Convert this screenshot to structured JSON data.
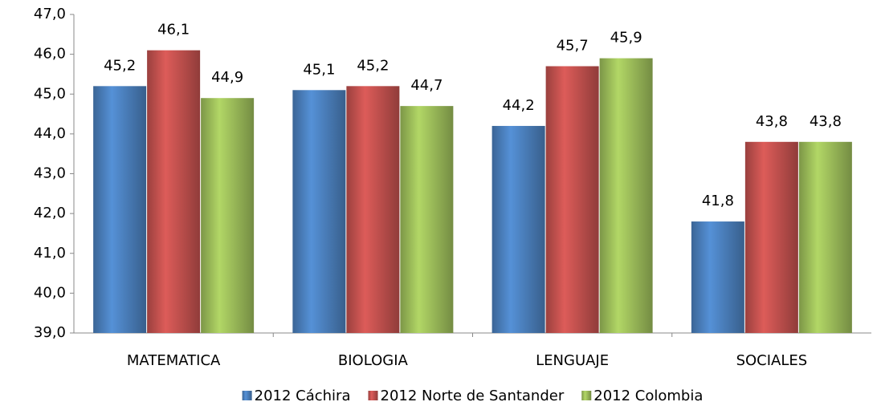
{
  "chart_data": {
    "type": "bar",
    "categories": [
      "MATEMATICA",
      "BIOLOGIA",
      "LENGUAJE",
      "SOCIALES"
    ],
    "series": [
      {
        "name": "2012 Cáchira",
        "color": "#4a7ebb",
        "values": [
          45.2,
          45.1,
          44.2,
          41.8
        ],
        "value_labels": [
          "45,2",
          "45,1",
          "44,2",
          "41,8"
        ]
      },
      {
        "name": "2012 Norte de Santander",
        "color": "#c0504d",
        "values": [
          46.1,
          45.2,
          45.7,
          43.8
        ],
        "value_labels": [
          "46,1",
          "45,2",
          "45,7",
          "43,8"
        ]
      },
      {
        "name": "2012 Colombia",
        "color": "#9bbb59",
        "values": [
          44.9,
          44.7,
          45.9,
          43.8
        ],
        "value_labels": [
          "44,9",
          "44,7",
          "45,9",
          "43,8"
        ]
      }
    ],
    "ylim": [
      39,
      47
    ],
    "yticks": [
      {
        "value": 39,
        "label": "39,0"
      },
      {
        "value": 40,
        "label": "40,0"
      },
      {
        "value": 41,
        "label": "41,0"
      },
      {
        "value": 42,
        "label": "42,0"
      },
      {
        "value": 43,
        "label": "43,0"
      },
      {
        "value": 44,
        "label": "44,0"
      },
      {
        "value": 45,
        "label": "45,0"
      },
      {
        "value": 46,
        "label": "46,0"
      },
      {
        "value": 47,
        "label": "47,0"
      }
    ],
    "legend": "bottom"
  }
}
